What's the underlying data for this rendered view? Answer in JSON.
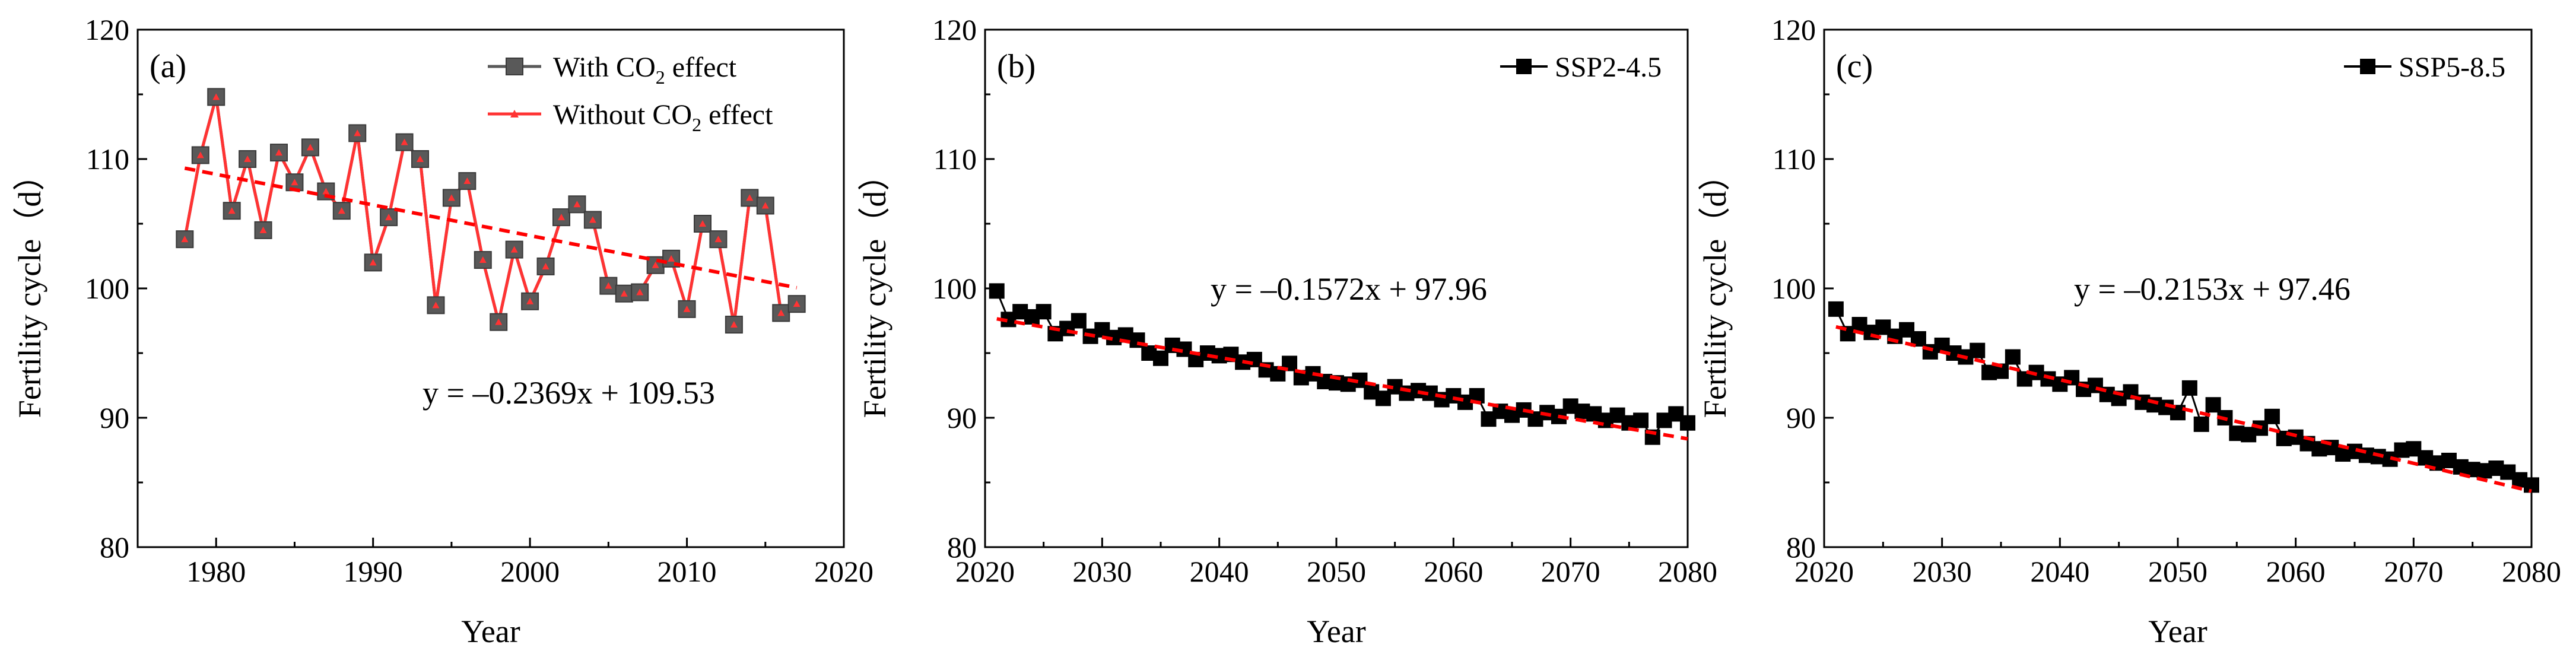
{
  "chart_data": [
    {
      "panel": "(a)",
      "type": "line",
      "xlabel": "Year",
      "ylabel": "Fertility cycle（d）",
      "xlim": [
        1975,
        2020
      ],
      "ylim": [
        80,
        120
      ],
      "xticks": [
        1980,
        1990,
        2000,
        2010,
        2020
      ],
      "yticks": [
        80,
        90,
        100,
        110,
        120
      ],
      "equation": "y = –0.2369x + 109.53",
      "trend": {
        "slope": -0.2369,
        "intercept": 109.53,
        "x0": 1978,
        "color": "#ff0000"
      },
      "legend": [
        {
          "name": "With CO",
          "sub": "2",
          "suffix": " effect",
          "color": "#595959",
          "marker": "square"
        },
        {
          "name": "Without CO",
          "sub": "2",
          "suffix": " effect",
          "color": "#ff3333",
          "marker": "triangle"
        }
      ],
      "x": [
        1978,
        1979,
        1980,
        1981,
        1982,
        1983,
        1984,
        1985,
        1986,
        1987,
        1988,
        1989,
        1990,
        1991,
        1992,
        1993,
        1994,
        1995,
        1996,
        1997,
        1998,
        1999,
        2000,
        2001,
        2002,
        2003,
        2004,
        2005,
        2006,
        2007,
        2008,
        2009,
        2010,
        2011,
        2012,
        2013,
        2014,
        2015,
        2016,
        2017
      ],
      "series": [
        {
          "name": "With CO2 effect",
          "values": [
            103.8,
            110.3,
            114.8,
            106.0,
            110.0,
            104.5,
            110.5,
            108.2,
            110.9,
            107.5,
            106.0,
            112.0,
            102.0,
            105.5,
            111.3,
            110.0,
            98.7,
            107.0,
            108.3,
            102.2,
            97.4,
            103.0,
            99.0,
            101.7,
            105.5,
            106.5,
            105.3,
            100.2,
            99.6,
            99.7,
            101.8,
            102.3,
            98.4,
            105.0,
            103.8,
            97.2,
            107.0,
            106.4,
            98.1,
            98.8
          ]
        },
        {
          "name": "Without CO2 effect",
          "values": [
            103.8,
            110.3,
            114.8,
            106.0,
            110.0,
            104.5,
            110.5,
            108.2,
            110.9,
            107.5,
            106.0,
            112.0,
            102.0,
            105.5,
            111.3,
            110.0,
            98.7,
            107.0,
            108.3,
            102.2,
            97.4,
            103.0,
            99.0,
            101.7,
            105.5,
            106.5,
            105.3,
            100.2,
            99.6,
            99.7,
            101.8,
            102.3,
            98.4,
            105.0,
            103.8,
            97.2,
            107.0,
            106.4,
            98.1,
            98.8
          ]
        }
      ]
    },
    {
      "panel": "(b)",
      "type": "line",
      "xlabel": "Year",
      "ylabel": "Fertility cycle（d）",
      "xlim": [
        2020,
        2080
      ],
      "ylim": [
        80,
        120
      ],
      "xticks": [
        2020,
        2030,
        2040,
        2050,
        2060,
        2070,
        2080
      ],
      "yticks": [
        80,
        90,
        100,
        110,
        120
      ],
      "equation": "y = –0.1572x + 97.96",
      "trend": {
        "slope": -0.1572,
        "intercept": 97.96,
        "x0": 2020,
        "color": "#ff0000"
      },
      "legend": [
        {
          "name": "SSP2-4.5",
          "sub": "",
          "suffix": "",
          "color": "#000000",
          "marker": "square"
        }
      ],
      "x": [
        2021,
        2022,
        2023,
        2024,
        2025,
        2026,
        2027,
        2028,
        2029,
        2030,
        2031,
        2032,
        2033,
        2034,
        2035,
        2036,
        2037,
        2038,
        2039,
        2040,
        2041,
        2042,
        2043,
        2044,
        2045,
        2046,
        2047,
        2048,
        2049,
        2050,
        2051,
        2052,
        2053,
        2054,
        2055,
        2056,
        2057,
        2058,
        2059,
        2060,
        2061,
        2062,
        2063,
        2064,
        2065,
        2066,
        2067,
        2068,
        2069,
        2070,
        2071,
        2072,
        2073,
        2074,
        2075,
        2076,
        2077,
        2078,
        2079,
        2080
      ],
      "series": [
        {
          "name": "SSP2-4.5",
          "values": [
            99.8,
            97.6,
            98.2,
            97.8,
            98.2,
            96.5,
            96.9,
            97.5,
            96.3,
            96.8,
            96.2,
            96.4,
            96.0,
            95.0,
            94.6,
            95.6,
            95.3,
            94.5,
            95.0,
            94.8,
            94.9,
            94.3,
            94.5,
            93.7,
            93.4,
            94.2,
            93.1,
            93.4,
            92.8,
            92.7,
            92.6,
            92.9,
            92.0,
            91.5,
            92.4,
            91.9,
            92.1,
            91.9,
            91.4,
            91.7,
            91.2,
            91.7,
            89.9,
            90.5,
            90.2,
            90.6,
            89.9,
            90.4,
            90.1,
            90.9,
            90.5,
            90.3,
            89.8,
            90.2,
            89.6,
            89.8,
            88.5,
            89.8,
            90.3,
            89.6
          ]
        }
      ]
    },
    {
      "panel": "(c)",
      "type": "line",
      "xlabel": "Year",
      "ylabel": "Fertility cycle（d）",
      "xlim": [
        2020,
        2080
      ],
      "ylim": [
        80,
        120
      ],
      "xticks": [
        2020,
        2030,
        2040,
        2050,
        2060,
        2070,
        2080
      ],
      "yticks": [
        80,
        90,
        100,
        110,
        120
      ],
      "equation": "y = –0.2153x + 97.46",
      "trend": {
        "slope": -0.2153,
        "intercept": 97.46,
        "x0": 2020,
        "color": "#ff0000"
      },
      "legend": [
        {
          "name": "SSP5-8.5",
          "sub": "",
          "suffix": "",
          "color": "#000000",
          "marker": "square"
        }
      ],
      "x": [
        2021,
        2022,
        2023,
        2024,
        2025,
        2026,
        2027,
        2028,
        2029,
        2030,
        2031,
        2032,
        2033,
        2034,
        2035,
        2036,
        2037,
        2038,
        2039,
        2040,
        2041,
        2042,
        2043,
        2044,
        2045,
        2046,
        2047,
        2048,
        2049,
        2050,
        2051,
        2052,
        2053,
        2054,
        2055,
        2056,
        2057,
        2058,
        2059,
        2060,
        2061,
        2062,
        2063,
        2064,
        2065,
        2066,
        2067,
        2068,
        2069,
        2070,
        2071,
        2072,
        2073,
        2074,
        2075,
        2076,
        2077,
        2078,
        2079,
        2080
      ],
      "series": [
        {
          "name": "SSP5-8.5",
          "values": [
            98.4,
            96.5,
            97.2,
            96.6,
            97.0,
            96.3,
            96.8,
            96.1,
            95.1,
            95.6,
            95.0,
            94.7,
            95.2,
            93.5,
            93.6,
            94.7,
            93.0,
            93.5,
            93.0,
            92.6,
            93.1,
            92.2,
            92.5,
            91.8,
            91.5,
            92.0,
            91.2,
            91.0,
            90.8,
            90.4,
            92.3,
            89.5,
            91.0,
            90.0,
            88.8,
            88.7,
            89.2,
            90.1,
            88.4,
            88.5,
            88.0,
            87.6,
            87.7,
            87.2,
            87.4,
            87.1,
            87.0,
            86.8,
            87.5,
            87.6,
            86.9,
            86.5,
            86.7,
            86.2,
            86.0,
            85.9,
            86.1,
            85.8,
            85.2,
            84.8
          ]
        }
      ]
    }
  ]
}
